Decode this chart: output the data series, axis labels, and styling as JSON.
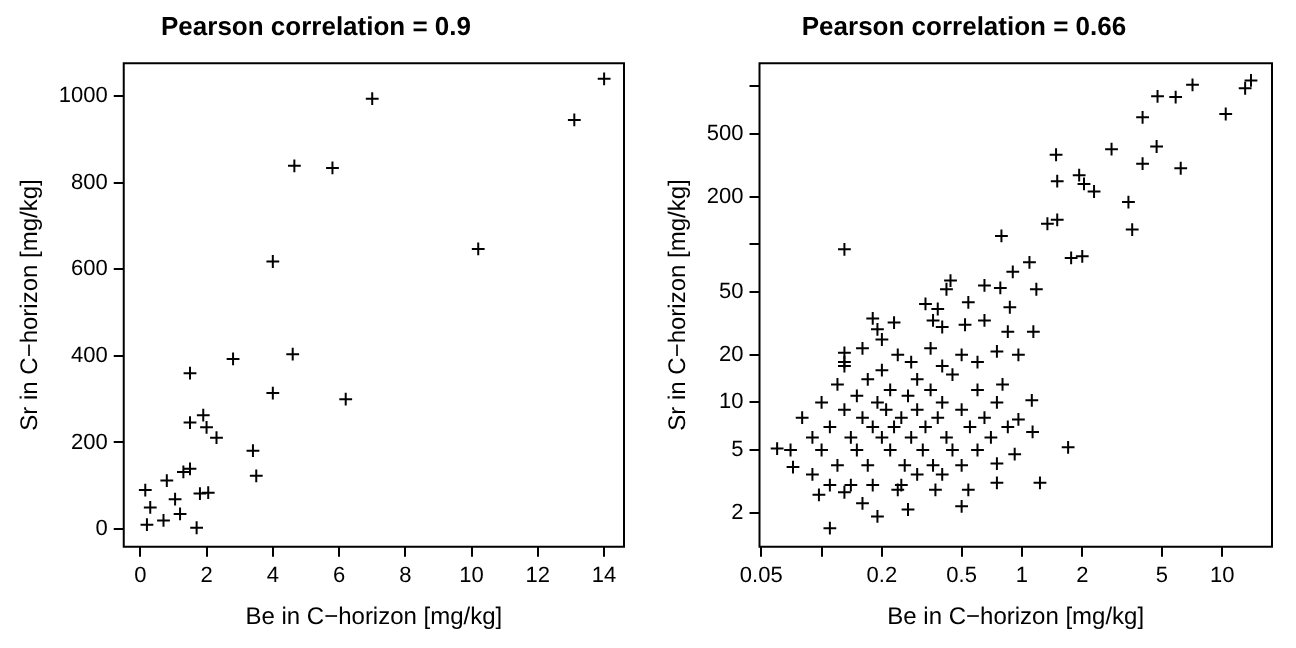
{
  "chart_data": [
    {
      "type": "scatter",
      "title": "Pearson correlation = 0.9",
      "xlabel": "Be in C−horizon [mg/kg]",
      "ylabel": "Sr in C−horizon [mg/kg]",
      "color": "#000000",
      "marker": "cross",
      "grid": false,
      "xlim": [
        -0.5,
        14.6
      ],
      "ylim": [
        -41,
        1076
      ],
      "xticks": [
        0,
        2,
        4,
        6,
        8,
        10,
        12,
        14
      ],
      "yticks": [
        0,
        200,
        400,
        600,
        800,
        1000
      ],
      "x": [
        14,
        13.1,
        7,
        4.65,
        5.8,
        10.2,
        4,
        2.8,
        4.6,
        1.5,
        4,
        6.2,
        1.9,
        1.5,
        2,
        2.3,
        3.4,
        3.5,
        1.5,
        1.3,
        0.8,
        0.15,
        1.8,
        2.05,
        1.7,
        1.05,
        0.2,
        0.7,
        0.3,
        1.2
      ],
      "values": [
        1040,
        945,
        994,
        839,
        834,
        647,
        618,
        393,
        404,
        360,
        314,
        300,
        263,
        246,
        235,
        211,
        181,
        123,
        139,
        132,
        112,
        90,
        82,
        84,
        3,
        69,
        10,
        20,
        50,
        35
      ]
    },
    {
      "type": "scatter",
      "title": "Pearson correlation = 0.66",
      "xlabel": "Be in C−horizon [mg/kg]",
      "ylabel": "Sr in C−horizon [mg/kg]",
      "color": "#000000",
      "marker": "cross",
      "grid": false,
      "log": "xy",
      "xlim": [
        0.049,
        17.7
      ],
      "ylim": [
        1.22,
        1400
      ],
      "xticks": [
        0.05,
        {
          "value": 0.1,
          "label": null
        },
        0.2,
        0.5,
        1,
        2,
        5,
        10
      ],
      "yticks": [
        2,
        5,
        10,
        20,
        50,
        {
          "value": 100,
          "label": null
        },
        200,
        500,
        {
          "value": 1000,
          "label": null
        }
      ],
      "x": [
        13.9,
        13,
        10.4,
        7.1,
        5.85,
        4.75,
        4,
        4.7,
        4,
        6.2,
        2.8,
        1.48,
        1.5,
        1.93,
        2.04,
        2.29,
        3.4,
        3.55,
        1.5,
        1.34,
        0.79,
        0.13,
        2,
        1.76,
        1.09,
        0.9,
        0.78,
        1.18,
        0.65,
        0.44,
        0.42,
        0.54,
        0.33,
        0.38,
        0.87,
        0.18,
        0.23,
        0.19,
        0.65,
        0.85,
        1.14,
        0.52,
        0.4,
        0.36,
        0.13,
        0.13,
        0.96,
        0.75,
        1.7,
        1.23,
        0.11,
        0.19,
        0.5,
        0.27,
        0.06,
        0.072,
        0.097,
        0.92,
        1.13,
        1.12,
        0.96,
        0.75,
        0.75,
        0.54,
        0.37,
        0.24,
        0.13,
        0.16,
        0.08,
        0.09,
        0.1,
        0.1,
        0.11,
        0.12,
        0.12,
        0.13,
        0.14,
        0.15,
        0.15,
        0.16,
        0.17,
        0.17,
        0.18,
        0.19,
        0.2,
        0.2,
        0.21,
        0.22,
        0.22,
        0.23,
        0.24,
        0.25,
        0.26,
        0.27,
        0.28,
        0.3,
        0.3,
        0.32,
        0.33,
        0.35,
        0.36,
        0.38,
        0.4,
        0.42,
        0.45,
        0.45,
        0.5,
        0.5,
        0.55,
        0.6,
        0.6,
        0.65,
        0.7,
        0.75,
        0.8,
        0.85,
        0.07,
        0.09,
        0.11,
        0.14,
        0.13,
        0.16,
        0.2,
        0.28,
        0.35,
        0.4,
        0.5,
        0.6,
        0.25,
        0.18,
        0.3,
        0.4
      ],
      "values": [
        1090,
        972,
        668,
        1022,
        855,
        864,
        636,
        416,
        324,
        303,
        400,
        369,
        251,
        274,
        241,
        216,
        185,
        124,
        143,
        135,
        113,
        93,
        84,
        82,
        77,
        67,
        53,
        52,
        55,
        59,
        52,
        43,
        42,
        39,
        40,
        34,
        32,
        29,
        33,
        28,
        28,
        31,
        30,
        33,
        20.6,
        18,
        20,
        21,
        5.2,
        3.1,
        1.6,
        1.9,
        2.2,
        2.1,
        5.1,
        3.9,
        2.6,
        4.7,
        6.5,
        10.3,
        7.8,
        4.1,
        3.1,
        2.8,
        2.8,
        2.8,
        2.7,
        2.3,
        8,
        6,
        10,
        5,
        7,
        13,
        4,
        9,
        6,
        11,
        5,
        8,
        14,
        4,
        7,
        10,
        6,
        16,
        9,
        5,
        12,
        7,
        20,
        8,
        4,
        11,
        6,
        14,
        9,
        5,
        7,
        12,
        4,
        8,
        10,
        6,
        15,
        5,
        9,
        4,
        7,
        12,
        5,
        8,
        6,
        10,
        13,
        7,
        5,
        3.5,
        3,
        3,
        17,
        22,
        25,
        18,
        22,
        17,
        20,
        18,
        3,
        3,
        3.5,
        3.5
      ]
    }
  ]
}
